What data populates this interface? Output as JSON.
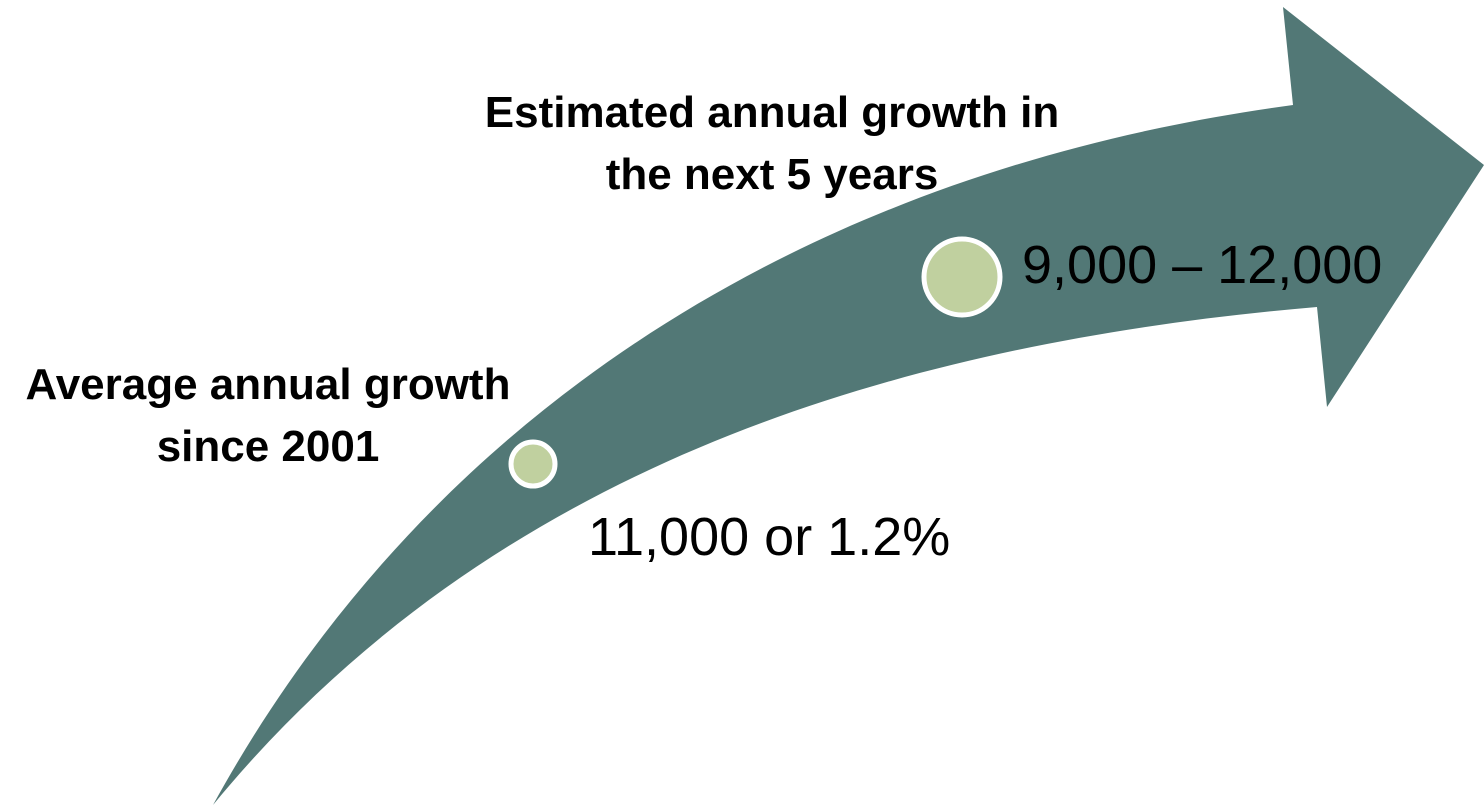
{
  "colors": {
    "arrow_fill": "#527876",
    "marker_fill": "#c0d09f",
    "marker_ring": "#ffffff",
    "text": "#000000"
  },
  "milestones": [
    {
      "heading_line1": "Average annual growth",
      "heading_line2": "since 2001",
      "value": "11,000 or 1.2%"
    },
    {
      "heading_line1": "Estimated annual growth in",
      "heading_line2": "the next 5 years",
      "value": "9,000 – 12,000"
    }
  ]
}
